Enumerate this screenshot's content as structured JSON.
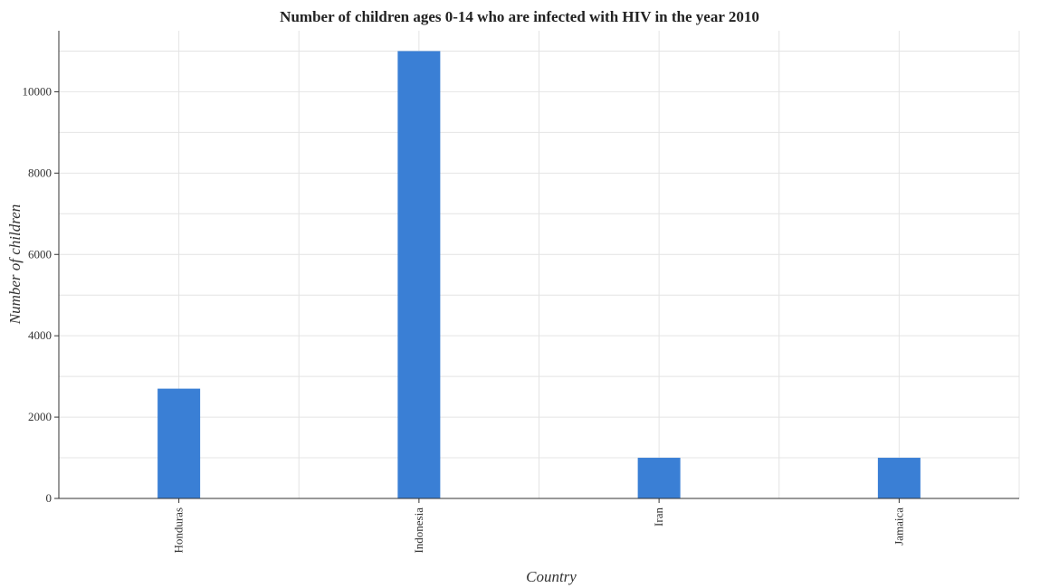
{
  "chart_data": {
    "type": "bar",
    "title": "Number of children ages 0-14 who are infected with HIV in the year 2010",
    "xlabel": "Country",
    "ylabel": "Number of children",
    "categories": [
      "Honduras",
      "Indonesia",
      "Iran",
      "Jamaica"
    ],
    "values": [
      2700,
      11000,
      1000,
      1000
    ],
    "ylim": [
      0,
      11500
    ],
    "yticks": [
      0,
      2000,
      4000,
      6000,
      8000,
      10000
    ],
    "ytick_labels": [
      "0",
      "2000",
      "4000",
      "6000",
      "8000",
      "10000"
    ],
    "grid": true,
    "bar_color": "#3a7fd5"
  }
}
